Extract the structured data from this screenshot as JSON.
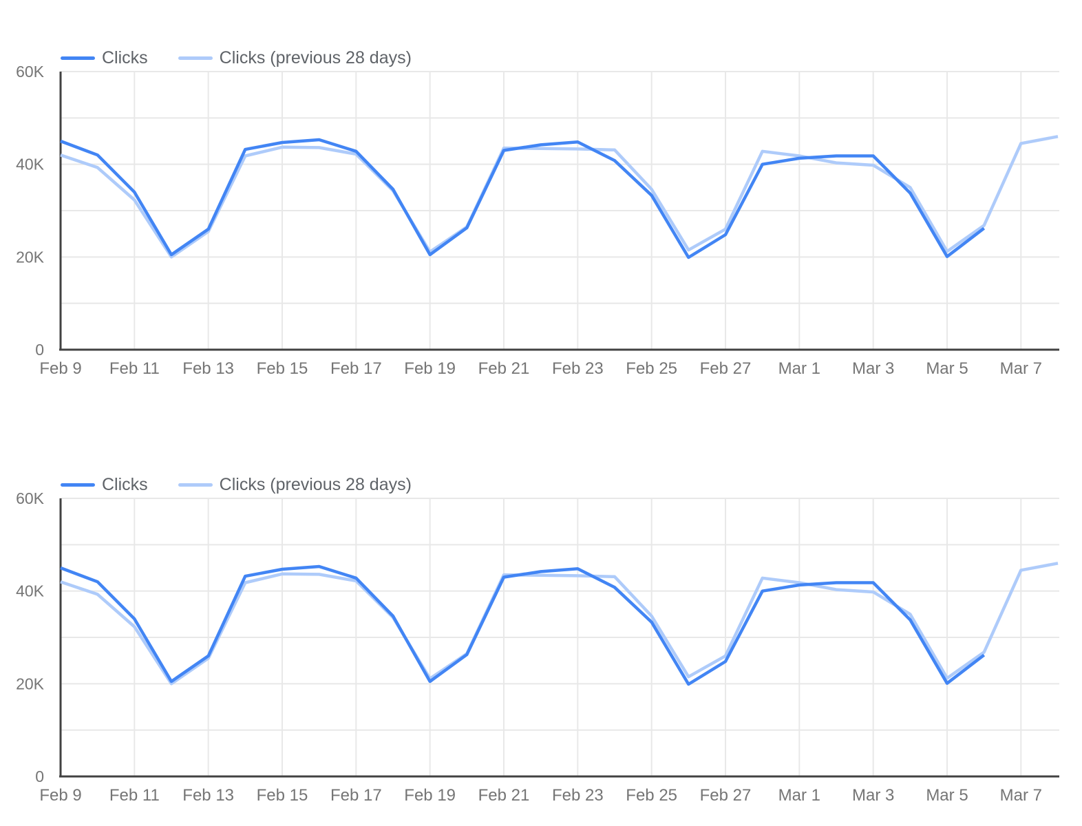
{
  "page": {
    "background": "#ffffff"
  },
  "colors": {
    "series_current": "#4285F4",
    "series_previous": "#AECBFA",
    "gridline": "#E8E8E8",
    "axis": "#424242",
    "tick_label": "#757575",
    "legend_text": "#5F6368"
  },
  "chart_data": [
    {
      "type": "line",
      "title": "",
      "xlabel": "",
      "ylabel": "",
      "grid": true,
      "legend_position": "top-left",
      "ylim": [
        0,
        60000
      ],
      "legend": [
        {
          "label": "Clicks",
          "color": "#4285F4"
        },
        {
          "label": "Clicks (previous 28 days)",
          "color": "#AECBFA"
        }
      ],
      "x": [
        "Feb 9",
        "Feb 10",
        "Feb 11",
        "Feb 12",
        "Feb 13",
        "Feb 14",
        "Feb 15",
        "Feb 16",
        "Feb 17",
        "Feb 18",
        "Feb 19",
        "Feb 20",
        "Feb 21",
        "Feb 22",
        "Feb 23",
        "Feb 24",
        "Feb 25",
        "Feb 26",
        "Feb 27",
        "Feb 28",
        "Mar 1",
        "Mar 2",
        "Mar 3",
        "Mar 4",
        "Mar 5",
        "Mar 6",
        "Mar 7",
        "Mar 8"
      ],
      "x_tick_labels": [
        "Feb 9",
        "Feb 11",
        "Feb 13",
        "Feb 15",
        "Feb 17",
        "Feb 19",
        "Feb 21",
        "Feb 23",
        "Feb 25",
        "Feb 27",
        "Mar 1",
        "Mar 3",
        "Mar 5",
        "Mar 7"
      ],
      "y_ticks": [
        {
          "value": 0,
          "label": "0"
        },
        {
          "value": 20000,
          "label": "20K"
        },
        {
          "value": 40000,
          "label": "40K"
        },
        {
          "value": 60000,
          "label": "60K"
        }
      ],
      "y_gridlines": [
        10000,
        20000,
        30000,
        40000,
        50000,
        60000
      ],
      "series": [
        {
          "name": "Clicks",
          "color": "#4285F4",
          "values": [
            45000,
            42000,
            34000,
            20500,
            26000,
            43200,
            44700,
            45300,
            42800,
            34600,
            20500,
            26300,
            43000,
            44200,
            44800,
            40800,
            33300,
            19900,
            24800,
            40000,
            41300,
            41800,
            41800,
            33800,
            20100,
            26200
          ]
        },
        {
          "name": "Clicks (previous 28 days)",
          "color": "#AECBFA",
          "values": [
            42000,
            39300,
            32300,
            20000,
            25500,
            41800,
            43700,
            43600,
            42200,
            34300,
            21100,
            26500,
            43500,
            43400,
            43300,
            43100,
            34600,
            21500,
            26000,
            42800,
            41800,
            40300,
            39800,
            35000,
            21200,
            26800,
            44500,
            46000
          ]
        }
      ]
    },
    {
      "type": "line",
      "title": "",
      "xlabel": "",
      "ylabel": "",
      "grid": true,
      "legend_position": "top-left",
      "ylim": [
        0,
        60000
      ],
      "legend": [
        {
          "label": "Clicks",
          "color": "#4285F4"
        },
        {
          "label": "Clicks (previous 28 days)",
          "color": "#AECBFA"
        }
      ],
      "x": [
        "Feb 9",
        "Feb 10",
        "Feb 11",
        "Feb 12",
        "Feb 13",
        "Feb 14",
        "Feb 15",
        "Feb 16",
        "Feb 17",
        "Feb 18",
        "Feb 19",
        "Feb 20",
        "Feb 21",
        "Feb 22",
        "Feb 23",
        "Feb 24",
        "Feb 25",
        "Feb 26",
        "Feb 27",
        "Feb 28",
        "Mar 1",
        "Mar 2",
        "Mar 3",
        "Mar 4",
        "Mar 5",
        "Mar 6",
        "Mar 7",
        "Mar 8"
      ],
      "x_tick_labels": [
        "Feb 9",
        "Feb 11",
        "Feb 13",
        "Feb 15",
        "Feb 17",
        "Feb 19",
        "Feb 21",
        "Feb 23",
        "Feb 25",
        "Feb 27",
        "Mar 1",
        "Mar 3",
        "Mar 5",
        "Mar 7"
      ],
      "y_ticks": [
        {
          "value": 0,
          "label": "0"
        },
        {
          "value": 20000,
          "label": "20K"
        },
        {
          "value": 40000,
          "label": "40K"
        },
        {
          "value": 60000,
          "label": "60K"
        }
      ],
      "y_gridlines": [
        10000,
        20000,
        30000,
        40000,
        50000,
        60000
      ],
      "series": [
        {
          "name": "Clicks",
          "color": "#4285F4",
          "values": [
            45000,
            42000,
            34000,
            20500,
            26000,
            43200,
            44700,
            45300,
            42800,
            34600,
            20500,
            26300,
            43000,
            44200,
            44800,
            40800,
            33300,
            19900,
            24800,
            40000,
            41300,
            41800,
            41800,
            33800,
            20100,
            26200
          ]
        },
        {
          "name": "Clicks (previous 28 days)",
          "color": "#AECBFA",
          "values": [
            42000,
            39300,
            32300,
            20000,
            25500,
            41800,
            43700,
            43600,
            42200,
            34300,
            21100,
            26500,
            43500,
            43400,
            43300,
            43100,
            34600,
            21500,
            26000,
            42800,
            41800,
            40300,
            39800,
            35000,
            21200,
            26800,
            44500,
            46000
          ]
        }
      ]
    }
  ]
}
